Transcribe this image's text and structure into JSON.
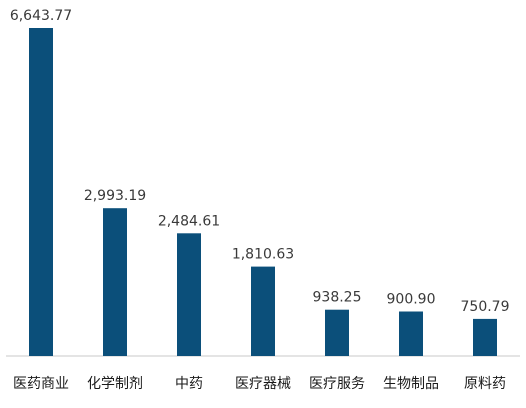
{
  "chart_data": {
    "type": "bar",
    "categories": [
      "医药商业",
      "化学制剂",
      "中药",
      "医疗器械",
      "医疗服务",
      "生物制品",
      "原料药"
    ],
    "values": [
      6643.77,
      2993.19,
      2484.61,
      1810.63,
      938.25,
      900.9,
      750.79
    ],
    "value_labels": [
      "6,643.77",
      "2,993.19",
      "2,484.61",
      "1,810.63",
      "938.25",
      "900.90",
      "750.79"
    ],
    "title": "",
    "xlabel": "",
    "ylabel": "",
    "ylim": [
      0,
      6643.77
    ],
    "grid": false,
    "legend": "none",
    "bar_color": "#0b4f7a",
    "axis_color": "#c9c9c9"
  }
}
